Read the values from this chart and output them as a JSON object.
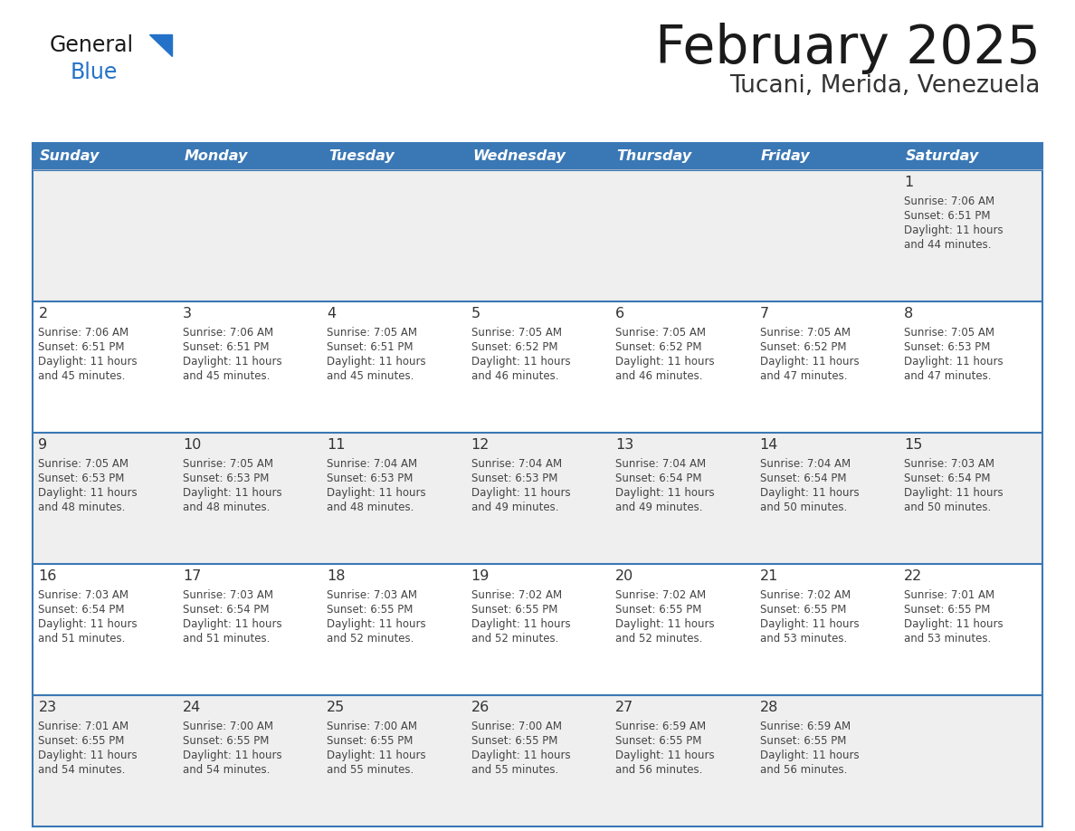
{
  "title": "February 2025",
  "subtitle": "Tucani, Merida, Venezuela",
  "days_of_week": [
    "Sunday",
    "Monday",
    "Tuesday",
    "Wednesday",
    "Thursday",
    "Friday",
    "Saturday"
  ],
  "header_bg": "#3A78B5",
  "header_text": "#FFFFFF",
  "row_bg_even": "#EFEFEF",
  "row_bg_odd": "#FFFFFF",
  "border_color": "#3A78B5",
  "day_number_color": "#333333",
  "cell_text_color": "#444444",
  "title_color": "#1a1a1a",
  "subtitle_color": "#333333",
  "logo_black": "#1a1a1a",
  "logo_blue": "#2472C8",
  "calendar_data": [
    [
      null,
      null,
      null,
      null,
      null,
      null,
      {
        "day": "1",
        "sunrise": "7:06 AM",
        "sunset": "6:51 PM",
        "daylight_line1": "Daylight: 11 hours",
        "daylight_line2": "and 44 minutes."
      }
    ],
    [
      {
        "day": "2",
        "sunrise": "7:06 AM",
        "sunset": "6:51 PM",
        "daylight_line1": "Daylight: 11 hours",
        "daylight_line2": "and 45 minutes."
      },
      {
        "day": "3",
        "sunrise": "7:06 AM",
        "sunset": "6:51 PM",
        "daylight_line1": "Daylight: 11 hours",
        "daylight_line2": "and 45 minutes."
      },
      {
        "day": "4",
        "sunrise": "7:05 AM",
        "sunset": "6:51 PM",
        "daylight_line1": "Daylight: 11 hours",
        "daylight_line2": "and 45 minutes."
      },
      {
        "day": "5",
        "sunrise": "7:05 AM",
        "sunset": "6:52 PM",
        "daylight_line1": "Daylight: 11 hours",
        "daylight_line2": "and 46 minutes."
      },
      {
        "day": "6",
        "sunrise": "7:05 AM",
        "sunset": "6:52 PM",
        "daylight_line1": "Daylight: 11 hours",
        "daylight_line2": "and 46 minutes."
      },
      {
        "day": "7",
        "sunrise": "7:05 AM",
        "sunset": "6:52 PM",
        "daylight_line1": "Daylight: 11 hours",
        "daylight_line2": "and 47 minutes."
      },
      {
        "day": "8",
        "sunrise": "7:05 AM",
        "sunset": "6:53 PM",
        "daylight_line1": "Daylight: 11 hours",
        "daylight_line2": "and 47 minutes."
      }
    ],
    [
      {
        "day": "9",
        "sunrise": "7:05 AM",
        "sunset": "6:53 PM",
        "daylight_line1": "Daylight: 11 hours",
        "daylight_line2": "and 48 minutes."
      },
      {
        "day": "10",
        "sunrise": "7:05 AM",
        "sunset": "6:53 PM",
        "daylight_line1": "Daylight: 11 hours",
        "daylight_line2": "and 48 minutes."
      },
      {
        "day": "11",
        "sunrise": "7:04 AM",
        "sunset": "6:53 PM",
        "daylight_line1": "Daylight: 11 hours",
        "daylight_line2": "and 48 minutes."
      },
      {
        "day": "12",
        "sunrise": "7:04 AM",
        "sunset": "6:53 PM",
        "daylight_line1": "Daylight: 11 hours",
        "daylight_line2": "and 49 minutes."
      },
      {
        "day": "13",
        "sunrise": "7:04 AM",
        "sunset": "6:54 PM",
        "daylight_line1": "Daylight: 11 hours",
        "daylight_line2": "and 49 minutes."
      },
      {
        "day": "14",
        "sunrise": "7:04 AM",
        "sunset": "6:54 PM",
        "daylight_line1": "Daylight: 11 hours",
        "daylight_line2": "and 50 minutes."
      },
      {
        "day": "15",
        "sunrise": "7:03 AM",
        "sunset": "6:54 PM",
        "daylight_line1": "Daylight: 11 hours",
        "daylight_line2": "and 50 minutes."
      }
    ],
    [
      {
        "day": "16",
        "sunrise": "7:03 AM",
        "sunset": "6:54 PM",
        "daylight_line1": "Daylight: 11 hours",
        "daylight_line2": "and 51 minutes."
      },
      {
        "day": "17",
        "sunrise": "7:03 AM",
        "sunset": "6:54 PM",
        "daylight_line1": "Daylight: 11 hours",
        "daylight_line2": "and 51 minutes."
      },
      {
        "day": "18",
        "sunrise": "7:03 AM",
        "sunset": "6:55 PM",
        "daylight_line1": "Daylight: 11 hours",
        "daylight_line2": "and 52 minutes."
      },
      {
        "day": "19",
        "sunrise": "7:02 AM",
        "sunset": "6:55 PM",
        "daylight_line1": "Daylight: 11 hours",
        "daylight_line2": "and 52 minutes."
      },
      {
        "day": "20",
        "sunrise": "7:02 AM",
        "sunset": "6:55 PM",
        "daylight_line1": "Daylight: 11 hours",
        "daylight_line2": "and 52 minutes."
      },
      {
        "day": "21",
        "sunrise": "7:02 AM",
        "sunset": "6:55 PM",
        "daylight_line1": "Daylight: 11 hours",
        "daylight_line2": "and 53 minutes."
      },
      {
        "day": "22",
        "sunrise": "7:01 AM",
        "sunset": "6:55 PM",
        "daylight_line1": "Daylight: 11 hours",
        "daylight_line2": "and 53 minutes."
      }
    ],
    [
      {
        "day": "23",
        "sunrise": "7:01 AM",
        "sunset": "6:55 PM",
        "daylight_line1": "Daylight: 11 hours",
        "daylight_line2": "and 54 minutes."
      },
      {
        "day": "24",
        "sunrise": "7:00 AM",
        "sunset": "6:55 PM",
        "daylight_line1": "Daylight: 11 hours",
        "daylight_line2": "and 54 minutes."
      },
      {
        "day": "25",
        "sunrise": "7:00 AM",
        "sunset": "6:55 PM",
        "daylight_line1": "Daylight: 11 hours",
        "daylight_line2": "and 55 minutes."
      },
      {
        "day": "26",
        "sunrise": "7:00 AM",
        "sunset": "6:55 PM",
        "daylight_line1": "Daylight: 11 hours",
        "daylight_line2": "and 55 minutes."
      },
      {
        "day": "27",
        "sunrise": "6:59 AM",
        "sunset": "6:55 PM",
        "daylight_line1": "Daylight: 11 hours",
        "daylight_line2": "and 56 minutes."
      },
      {
        "day": "28",
        "sunrise": "6:59 AM",
        "sunset": "6:55 PM",
        "daylight_line1": "Daylight: 11 hours",
        "daylight_line2": "and 56 minutes."
      },
      null
    ]
  ]
}
